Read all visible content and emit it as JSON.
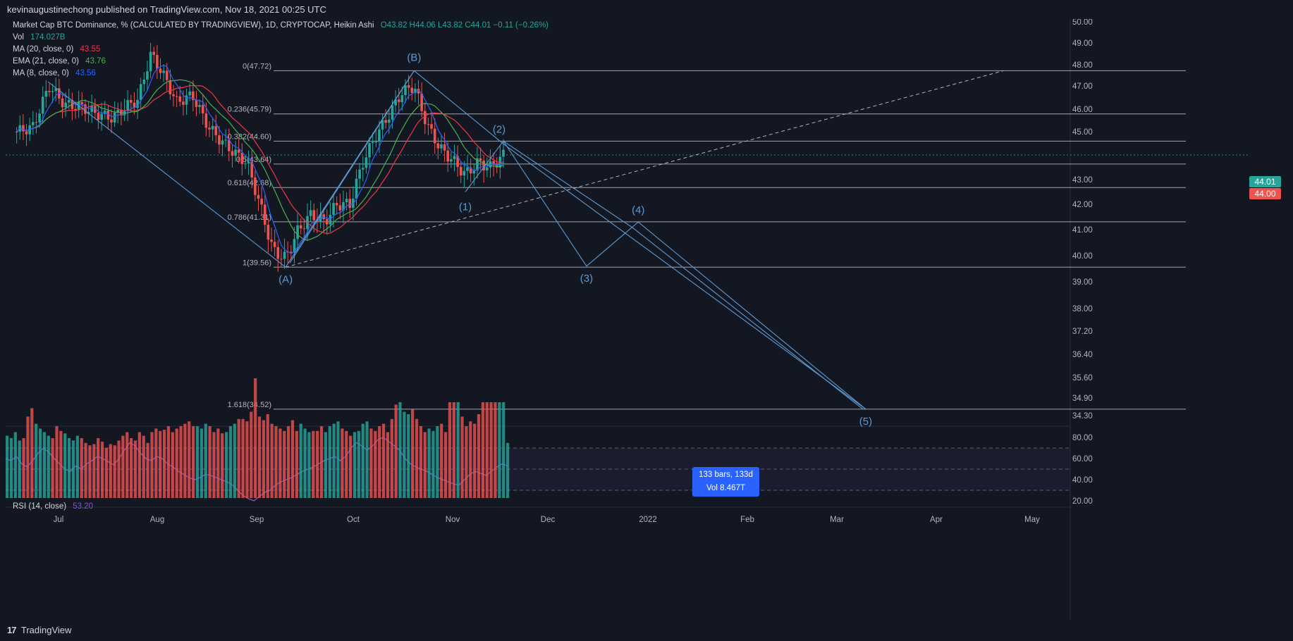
{
  "header": {
    "text": "kevinaugustinechong published on TradingView.com, Nov 18, 2021 00:25 UTC"
  },
  "footer": {
    "brand": "TradingView",
    "logo": "17"
  },
  "legend": {
    "main": "Market Cap BTC Dominance, % (CALCULATED BY TRADINGVIEW), 1D, CRYPTOCAP, Heikin Ashi",
    "ohlc": "O43.82  H44.06  L43.82  C44.01  −0.11 (−0.26%)",
    "vol_label": "Vol",
    "vol_value": "174.027B",
    "ma20_label": "MA (20, close, 0)",
    "ma20_value": "43.55",
    "ema21_label": "EMA (21, close, 0)",
    "ema21_value": "43.76",
    "ma8_label": "MA (8, close, 0)",
    "ma8_value": "43.56",
    "rsi_label": "RSI (14, close)",
    "rsi_value": "53.20"
  },
  "info_box": {
    "line1": "133 bars, 133d",
    "line2": "Vol 8.467T"
  },
  "price_tags": {
    "current": "44.01",
    "ma": "44.00"
  },
  "colors": {
    "bg": "#131722",
    "up": "#26a69a",
    "down": "#ef5350",
    "line": "#5b9bd5",
    "ma20": "#f23645",
    "ema21": "#4caf50",
    "ma8": "#2962ff",
    "rsi": "#7e57c2"
  },
  "chart_data": {
    "type": "candlestick",
    "title": "Market Cap BTC Dominance, % (CALCULATED BY TRADINGVIEW), 1D, CRYPTOCAP, Heikin Ashi",
    "x_ticks": [
      "Jul",
      "Aug",
      "Sep",
      "Oct",
      "Nov",
      "Dec",
      "2022",
      "Feb",
      "Mar",
      "Apr",
      "May"
    ],
    "y_ticks": [
      "50.00",
      "49.00",
      "48.00",
      "47.00",
      "46.00",
      "45.00",
      "43.00",
      "42.00",
      "41.00",
      "40.00",
      "39.00",
      "38.00",
      "37.20",
      "36.40",
      "35.60",
      "34.90",
      "34.30"
    ],
    "rsi_ticks": [
      "80.00",
      "60.00",
      "40.00",
      "20.00"
    ],
    "price_path": [
      {
        "date": "Jun 18",
        "value": 45.0
      },
      {
        "date": "Jun 23",
        "value": 45.2
      },
      {
        "date": "Jun 28",
        "value": 47.0
      },
      {
        "date": "Jul 3",
        "value": 46.2
      },
      {
        "date": "Jul 8",
        "value": 46.1
      },
      {
        "date": "Jul 13",
        "value": 45.8
      },
      {
        "date": "Jul 18",
        "value": 45.6
      },
      {
        "date": "Jul 22",
        "value": 46.1
      },
      {
        "date": "Jul 26",
        "value": 46.4
      },
      {
        "date": "Jul 30",
        "value": 48.5
      },
      {
        "date": "Aug 3",
        "value": 47.5
      },
      {
        "date": "Aug 7",
        "value": 46.3
      },
      {
        "date": "Aug 12",
        "value": 46.6
      },
      {
        "date": "Aug 17",
        "value": 45.2
      },
      {
        "date": "Aug 21",
        "value": 44.6
      },
      {
        "date": "Aug 25",
        "value": 44.1
      },
      {
        "date": "Aug 29",
        "value": 43.7
      },
      {
        "date": "Sep 2",
        "value": 42.0
      },
      {
        "date": "Sep 6",
        "value": 40.2
      },
      {
        "date": "Sep 10",
        "value": 39.9
      },
      {
        "date": "Sep 14",
        "value": 41.0
      },
      {
        "date": "Sep 18",
        "value": 41.6
      },
      {
        "date": "Sep 22",
        "value": 41.3
      },
      {
        "date": "Sep 26",
        "value": 42.0
      },
      {
        "date": "Sep 30",
        "value": 42.0
      },
      {
        "date": "Oct 4",
        "value": 43.7
      },
      {
        "date": "Oct 8",
        "value": 44.8
      },
      {
        "date": "Oct 12",
        "value": 45.7
      },
      {
        "date": "Oct 16",
        "value": 46.7
      },
      {
        "date": "Oct 20",
        "value": 47.0
      },
      {
        "date": "Oct 24",
        "value": 45.3
      },
      {
        "date": "Oct 28",
        "value": 44.3
      },
      {
        "date": "Nov 1",
        "value": 43.8
      },
      {
        "date": "Nov 5",
        "value": 43.2
      },
      {
        "date": "Nov 9",
        "value": 43.7
      },
      {
        "date": "Nov 13",
        "value": 43.5
      },
      {
        "date": "Nov 17",
        "value": 44.0
      }
    ],
    "fib_levels": [
      {
        "label": "0(47.72)",
        "value": 47.72
      },
      {
        "label": "0.236(45.79)",
        "value": 45.79
      },
      {
        "label": "0.382(44.60)",
        "value": 44.6
      },
      {
        "label": "0.5(43.64)",
        "value": 43.64
      },
      {
        "label": "0.618(42.68)",
        "value": 42.68
      },
      {
        "label": "0.786(41.31)",
        "value": 41.31
      },
      {
        "label": "1(39.56)",
        "value": 39.56
      },
      {
        "label": "1.618(34.52)",
        "value": 34.52
      }
    ],
    "wave_points": [
      {
        "label": "(A)",
        "date": "Sep 10",
        "value": 39.56
      },
      {
        "label": "(B)",
        "date": "Oct 20",
        "value": 47.72
      },
      {
        "label": "(1)",
        "date": "Nov 5",
        "value": 42.5
      },
      {
        "label": "(2)",
        "date": "Nov 17",
        "value": 44.6
      },
      {
        "label": "(3)",
        "date": "Dec 13",
        "value": 39.6
      },
      {
        "label": "(4)",
        "date": "Dec 29",
        "value": 41.3
      },
      {
        "label": "(5)",
        "date": "Mar 10",
        "value": 34.52
      }
    ],
    "trendline": {
      "from": {
        "date": "Sep 10",
        "value": 39.56
      },
      "to": {
        "date": "Apr 22",
        "value": 47.72
      },
      "style": "dashed"
    },
    "current_price": 44.01,
    "volume_scale_note": "relative bar heights 0-1",
    "volume": [
      0.52,
      0.5,
      0.55,
      0.48,
      0.5,
      0.68,
      0.75,
      0.62,
      0.58,
      0.55,
      0.52,
      0.5,
      0.6,
      0.56,
      0.54,
      0.5,
      0.48,
      0.52,
      0.5,
      0.46,
      0.44,
      0.45,
      0.5,
      0.47,
      0.42,
      0.45,
      0.44,
      0.48,
      0.52,
      0.55,
      0.5,
      0.48,
      0.55,
      0.52,
      0.46,
      0.55,
      0.58,
      0.56,
      0.57,
      0.6,
      0.55,
      0.58,
      0.6,
      0.62,
      0.64,
      0.6,
      0.6,
      0.58,
      0.62,
      0.6,
      0.55,
      0.58,
      0.54,
      0.55,
      0.6,
      0.62,
      0.66,
      0.66,
      0.64,
      0.72,
      1.0,
      0.68,
      0.65,
      0.7,
      0.62,
      0.6,
      0.58,
      0.56,
      0.6,
      0.65,
      0.56,
      0.62,
      0.58,
      0.55,
      0.56,
      0.56,
      0.6,
      0.55,
      0.6,
      0.62,
      0.64,
      0.58,
      0.56,
      0.52,
      0.55,
      0.56,
      0.62,
      0.64,
      0.58,
      0.56,
      0.6,
      0.62,
      0.55,
      0.66,
      0.78,
      0.8,
      0.72,
      0.7,
      0.74,
      0.66,
      0.6,
      0.55,
      0.58,
      0.56,
      0.6,
      0.62,
      0.55,
      0.8,
      0.8,
      0.8,
      0.68,
      0.6,
      0.64,
      0.62,
      0.7,
      0.8,
      0.8,
      0.8,
      0.8,
      0.8,
      0.8,
      0.46
    ],
    "rsi": [
      60,
      58,
      62,
      55,
      52,
      58,
      65,
      70,
      66,
      60,
      55,
      50,
      48,
      53,
      50,
      55,
      58,
      62,
      60,
      57,
      54,
      60,
      68,
      75,
      72,
      65,
      60,
      58,
      62,
      60,
      55,
      52,
      48,
      45,
      42,
      40,
      42,
      45,
      44,
      42,
      40,
      38,
      35,
      30,
      25,
      22,
      20,
      24,
      28,
      30,
      35,
      38,
      40,
      42,
      45,
      48,
      50,
      52,
      55,
      58,
      60,
      62,
      58,
      62,
      70,
      75,
      72,
      68,
      72,
      78,
      80,
      76,
      72,
      68,
      60,
      55,
      52,
      50,
      48,
      45,
      42,
      40,
      38,
      36,
      35,
      40,
      45,
      48,
      46,
      44,
      48,
      52,
      55,
      53
    ]
  }
}
